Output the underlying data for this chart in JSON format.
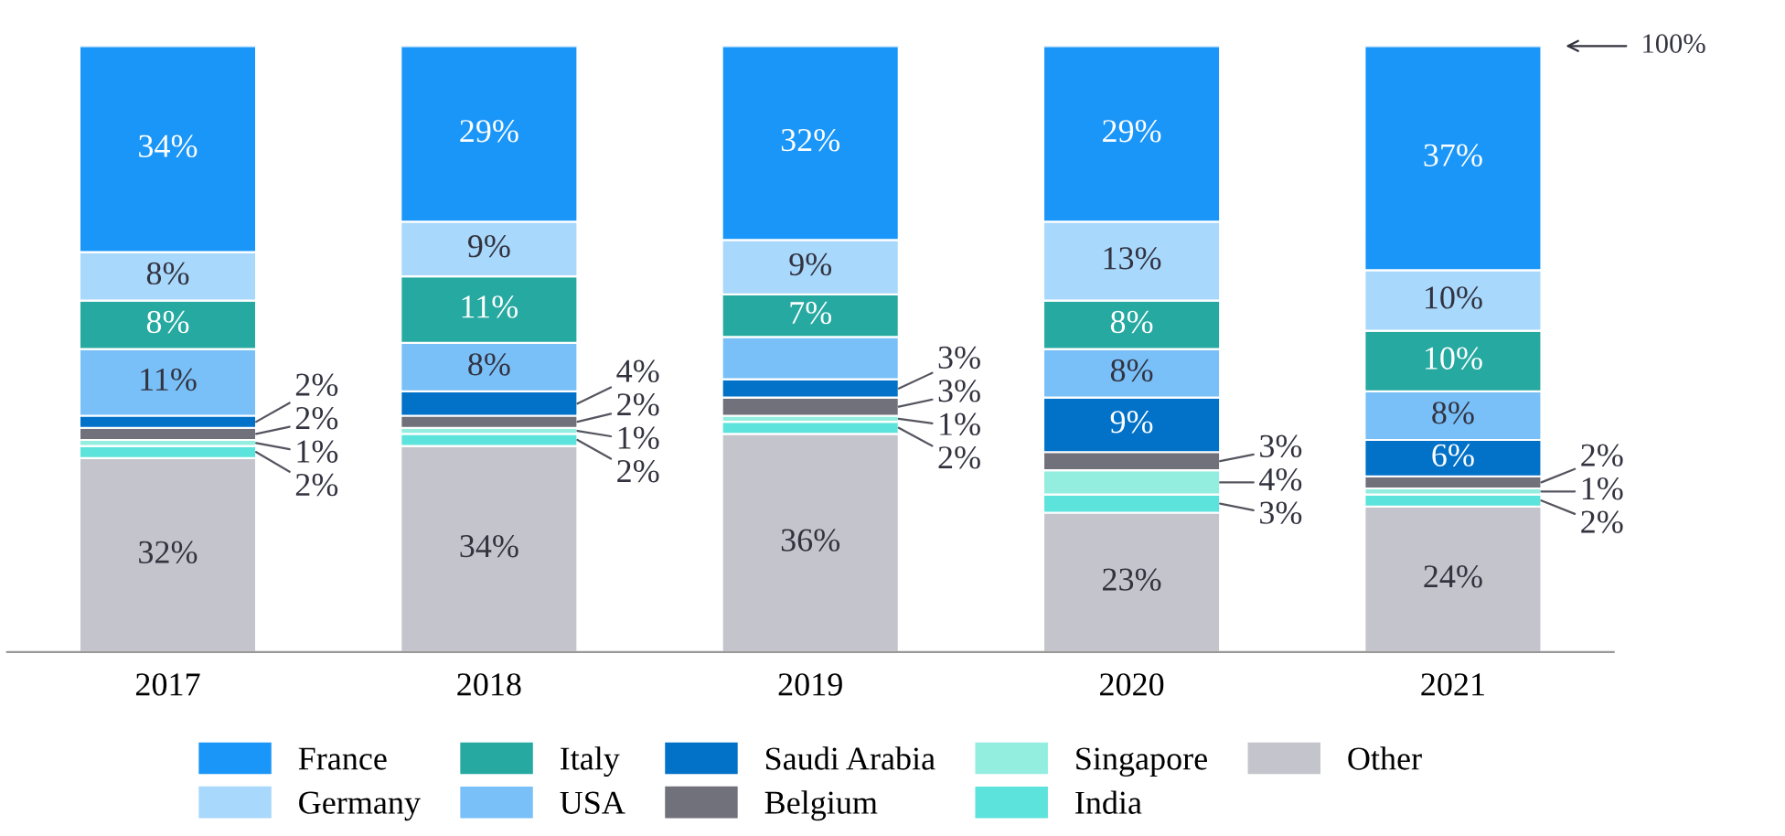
{
  "chart_data": {
    "type": "bar",
    "stacked": true,
    "categories": [
      "2017",
      "2018",
      "2019",
      "2020",
      "2021"
    ],
    "series": [
      {
        "name": "Other",
        "color": "#c4c4cc",
        "values": [
          32,
          34,
          36,
          23,
          24
        ],
        "value_labels": [
          "32%",
          "34%",
          "36%",
          "23%",
          "24%"
        ]
      },
      {
        "name": "India",
        "color": "#5ce3dc",
        "values": [
          2,
          2,
          2,
          3,
          2
        ],
        "value_labels": [
          "2%",
          "2%",
          "2%",
          "3%",
          "2%"
        ]
      },
      {
        "name": "Singapore",
        "color": "#93eee0",
        "values": [
          1,
          1,
          1,
          4,
          1
        ],
        "value_labels": [
          "1%",
          "1%",
          "1%",
          "4%",
          "1%"
        ]
      },
      {
        "name": "Belgium",
        "color": "#71717c",
        "values": [
          2,
          2,
          3,
          3,
          2
        ],
        "value_labels": [
          "2%",
          "2%",
          "3%",
          "3%",
          "2%"
        ]
      },
      {
        "name": "Saudi Arabia",
        "color": "#0272c8",
        "values": [
          2,
          4,
          3,
          9,
          6
        ],
        "value_labels": [
          "2%",
          "4%",
          "3%",
          "9%",
          "6%"
        ]
      },
      {
        "name": "USA",
        "color": "#79c0f9",
        "values": [
          11,
          8,
          7,
          8,
          8
        ],
        "value_labels": [
          "11%",
          "8%",
          null,
          "8%",
          "8%"
        ]
      },
      {
        "name": "Italy",
        "color": "#26a9a1",
        "values": [
          8,
          11,
          7,
          8,
          10
        ],
        "value_labels": [
          "8%",
          "11%",
          "7%",
          "8%",
          "10%"
        ]
      },
      {
        "name": "Germany",
        "color": "#a8d8fc",
        "values": [
          8,
          9,
          9,
          13,
          10
        ],
        "value_labels": [
          "8%",
          "9%",
          "9%",
          "13%",
          "10%"
        ]
      },
      {
        "name": "France",
        "color": "#1a96f8",
        "values": [
          34,
          29,
          32,
          29,
          37
        ],
        "value_labels": [
          "34%",
          "29%",
          "32%",
          "29%",
          "37%"
        ]
      }
    ],
    "ylim": [
      0,
      100
    ],
    "tick_labels": "x",
    "grid": false,
    "legend": "bottom",
    "annotations": [
      "100%"
    ]
  }
}
